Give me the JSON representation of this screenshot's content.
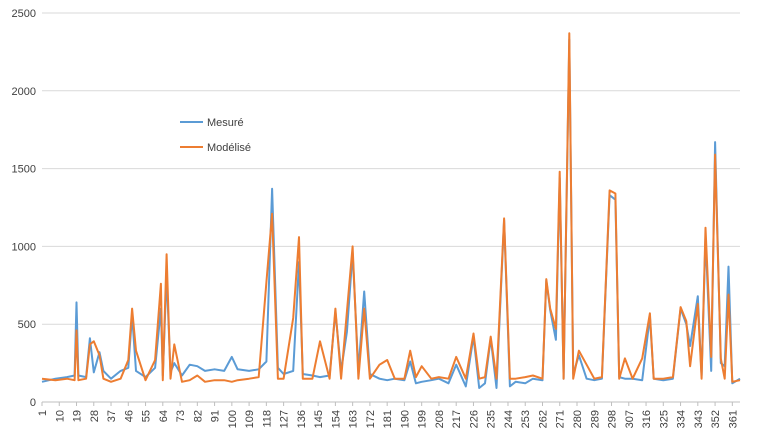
{
  "chart_data": {
    "type": "line",
    "ylim": [
      0,
      2500
    ],
    "y_ticks": [
      0,
      500,
      1000,
      1500,
      2000,
      2500
    ],
    "x_ticks": [
      1,
      10,
      19,
      28,
      37,
      46,
      55,
      64,
      73,
      82,
      91,
      100,
      109,
      118,
      127,
      136,
      145,
      154,
      163,
      172,
      181,
      190,
      199,
      208,
      217,
      226,
      235,
      244,
      253,
      262,
      271,
      280,
      289,
      298,
      307,
      316,
      325,
      334,
      343,
      352,
      361
    ],
    "x_range": [
      1,
      365
    ],
    "grid": "horizontal",
    "legend_position": "center-left",
    "series": [
      {
        "name": "Mesuré",
        "color": "#5b9bd5",
        "points": [
          [
            1,
            130
          ],
          [
            8,
            150
          ],
          [
            14,
            160
          ],
          [
            18,
            170
          ],
          [
            19,
            640
          ],
          [
            20,
            170
          ],
          [
            24,
            160
          ],
          [
            26,
            410
          ],
          [
            28,
            190
          ],
          [
            31,
            320
          ],
          [
            33,
            200
          ],
          [
            37,
            150
          ],
          [
            42,
            200
          ],
          [
            46,
            220
          ],
          [
            48,
            560
          ],
          [
            50,
            200
          ],
          [
            55,
            160
          ],
          [
            60,
            220
          ],
          [
            63,
            600
          ],
          [
            64,
            170
          ],
          [
            66,
            820
          ],
          [
            68,
            190
          ],
          [
            70,
            250
          ],
          [
            74,
            170
          ],
          [
            78,
            240
          ],
          [
            82,
            230
          ],
          [
            86,
            200
          ],
          [
            91,
            210
          ],
          [
            96,
            200
          ],
          [
            100,
            290
          ],
          [
            103,
            210
          ],
          [
            109,
            200
          ],
          [
            114,
            210
          ],
          [
            118,
            260
          ],
          [
            121,
            1370
          ],
          [
            124,
            220
          ],
          [
            127,
            180
          ],
          [
            132,
            200
          ],
          [
            135,
            900
          ],
          [
            137,
            180
          ],
          [
            142,
            170
          ],
          [
            146,
            160
          ],
          [
            151,
            170
          ],
          [
            154,
            580
          ],
          [
            157,
            200
          ],
          [
            160,
            450
          ],
          [
            163,
            960
          ],
          [
            166,
            200
          ],
          [
            169,
            710
          ],
          [
            172,
            180
          ],
          [
            177,
            150
          ],
          [
            181,
            140
          ],
          [
            185,
            150
          ],
          [
            190,
            140
          ],
          [
            193,
            260
          ],
          [
            196,
            120
          ],
          [
            199,
            130
          ],
          [
            204,
            140
          ],
          [
            208,
            150
          ],
          [
            213,
            120
          ],
          [
            217,
            240
          ],
          [
            222,
            100
          ],
          [
            226,
            420
          ],
          [
            229,
            90
          ],
          [
            232,
            120
          ],
          [
            235,
            410
          ],
          [
            238,
            90
          ],
          [
            242,
            1170
          ],
          [
            245,
            100
          ],
          [
            248,
            130
          ],
          [
            253,
            120
          ],
          [
            257,
            150
          ],
          [
            262,
            140
          ],
          [
            264,
            780
          ],
          [
            266,
            590
          ],
          [
            269,
            400
          ],
          [
            271,
            1440
          ],
          [
            273,
            150
          ],
          [
            276,
            2330
          ],
          [
            278,
            180
          ],
          [
            281,
            300
          ],
          [
            285,
            150
          ],
          [
            289,
            140
          ],
          [
            293,
            150
          ],
          [
            297,
            1330
          ],
          [
            300,
            1300
          ],
          [
            302,
            160
          ],
          [
            305,
            150
          ],
          [
            309,
            150
          ],
          [
            314,
            140
          ],
          [
            318,
            550
          ],
          [
            320,
            150
          ],
          [
            325,
            140
          ],
          [
            330,
            150
          ],
          [
            334,
            600
          ],
          [
            337,
            500
          ],
          [
            339,
            360
          ],
          [
            343,
            680
          ],
          [
            345,
            170
          ],
          [
            347,
            1060
          ],
          [
            350,
            200
          ],
          [
            352,
            1670
          ],
          [
            355,
            250
          ],
          [
            357,
            230
          ],
          [
            359,
            870
          ],
          [
            361,
            120
          ],
          [
            365,
            150
          ]
        ]
      },
      {
        "name": "Modélisé",
        "color": "#ed7d31",
        "points": [
          [
            1,
            150
          ],
          [
            8,
            140
          ],
          [
            14,
            150
          ],
          [
            18,
            140
          ],
          [
            19,
            460
          ],
          [
            20,
            140
          ],
          [
            24,
            150
          ],
          [
            26,
            370
          ],
          [
            28,
            390
          ],
          [
            31,
            300
          ],
          [
            33,
            150
          ],
          [
            37,
            130
          ],
          [
            42,
            150
          ],
          [
            46,
            270
          ],
          [
            48,
            600
          ],
          [
            50,
            330
          ],
          [
            55,
            140
          ],
          [
            60,
            270
          ],
          [
            63,
            760
          ],
          [
            64,
            140
          ],
          [
            66,
            950
          ],
          [
            68,
            150
          ],
          [
            70,
            370
          ],
          [
            74,
            130
          ],
          [
            78,
            140
          ],
          [
            82,
            170
          ],
          [
            86,
            130
          ],
          [
            91,
            140
          ],
          [
            96,
            140
          ],
          [
            100,
            130
          ],
          [
            103,
            140
          ],
          [
            109,
            150
          ],
          [
            114,
            160
          ],
          [
            118,
            770
          ],
          [
            121,
            1210
          ],
          [
            124,
            150
          ],
          [
            127,
            150
          ],
          [
            132,
            540
          ],
          [
            135,
            1060
          ],
          [
            137,
            150
          ],
          [
            142,
            150
          ],
          [
            146,
            390
          ],
          [
            151,
            150
          ],
          [
            154,
            600
          ],
          [
            157,
            150
          ],
          [
            160,
            580
          ],
          [
            163,
            1000
          ],
          [
            166,
            150
          ],
          [
            169,
            600
          ],
          [
            172,
            150
          ],
          [
            177,
            240
          ],
          [
            181,
            270
          ],
          [
            185,
            150
          ],
          [
            190,
            150
          ],
          [
            193,
            330
          ],
          [
            196,
            160
          ],
          [
            199,
            230
          ],
          [
            204,
            150
          ],
          [
            208,
            160
          ],
          [
            213,
            150
          ],
          [
            217,
            290
          ],
          [
            222,
            150
          ],
          [
            226,
            440
          ],
          [
            229,
            150
          ],
          [
            232,
            160
          ],
          [
            235,
            420
          ],
          [
            238,
            150
          ],
          [
            242,
            1180
          ],
          [
            245,
            150
          ],
          [
            248,
            150
          ],
          [
            253,
            160
          ],
          [
            257,
            170
          ],
          [
            262,
            150
          ],
          [
            264,
            790
          ],
          [
            266,
            600
          ],
          [
            269,
            470
          ],
          [
            271,
            1480
          ],
          [
            273,
            150
          ],
          [
            276,
            2370
          ],
          [
            278,
            150
          ],
          [
            281,
            330
          ],
          [
            285,
            240
          ],
          [
            289,
            150
          ],
          [
            293,
            160
          ],
          [
            297,
            1360
          ],
          [
            300,
            1340
          ],
          [
            302,
            150
          ],
          [
            305,
            280
          ],
          [
            309,
            150
          ],
          [
            314,
            280
          ],
          [
            318,
            570
          ],
          [
            320,
            150
          ],
          [
            325,
            150
          ],
          [
            330,
            160
          ],
          [
            334,
            610
          ],
          [
            337,
            520
          ],
          [
            339,
            230
          ],
          [
            343,
            630
          ],
          [
            345,
            150
          ],
          [
            347,
            1120
          ],
          [
            350,
            290
          ],
          [
            352,
            1590
          ],
          [
            355,
            280
          ],
          [
            357,
            150
          ],
          [
            359,
            690
          ],
          [
            361,
            130
          ],
          [
            365,
            140
          ]
        ]
      }
    ]
  }
}
